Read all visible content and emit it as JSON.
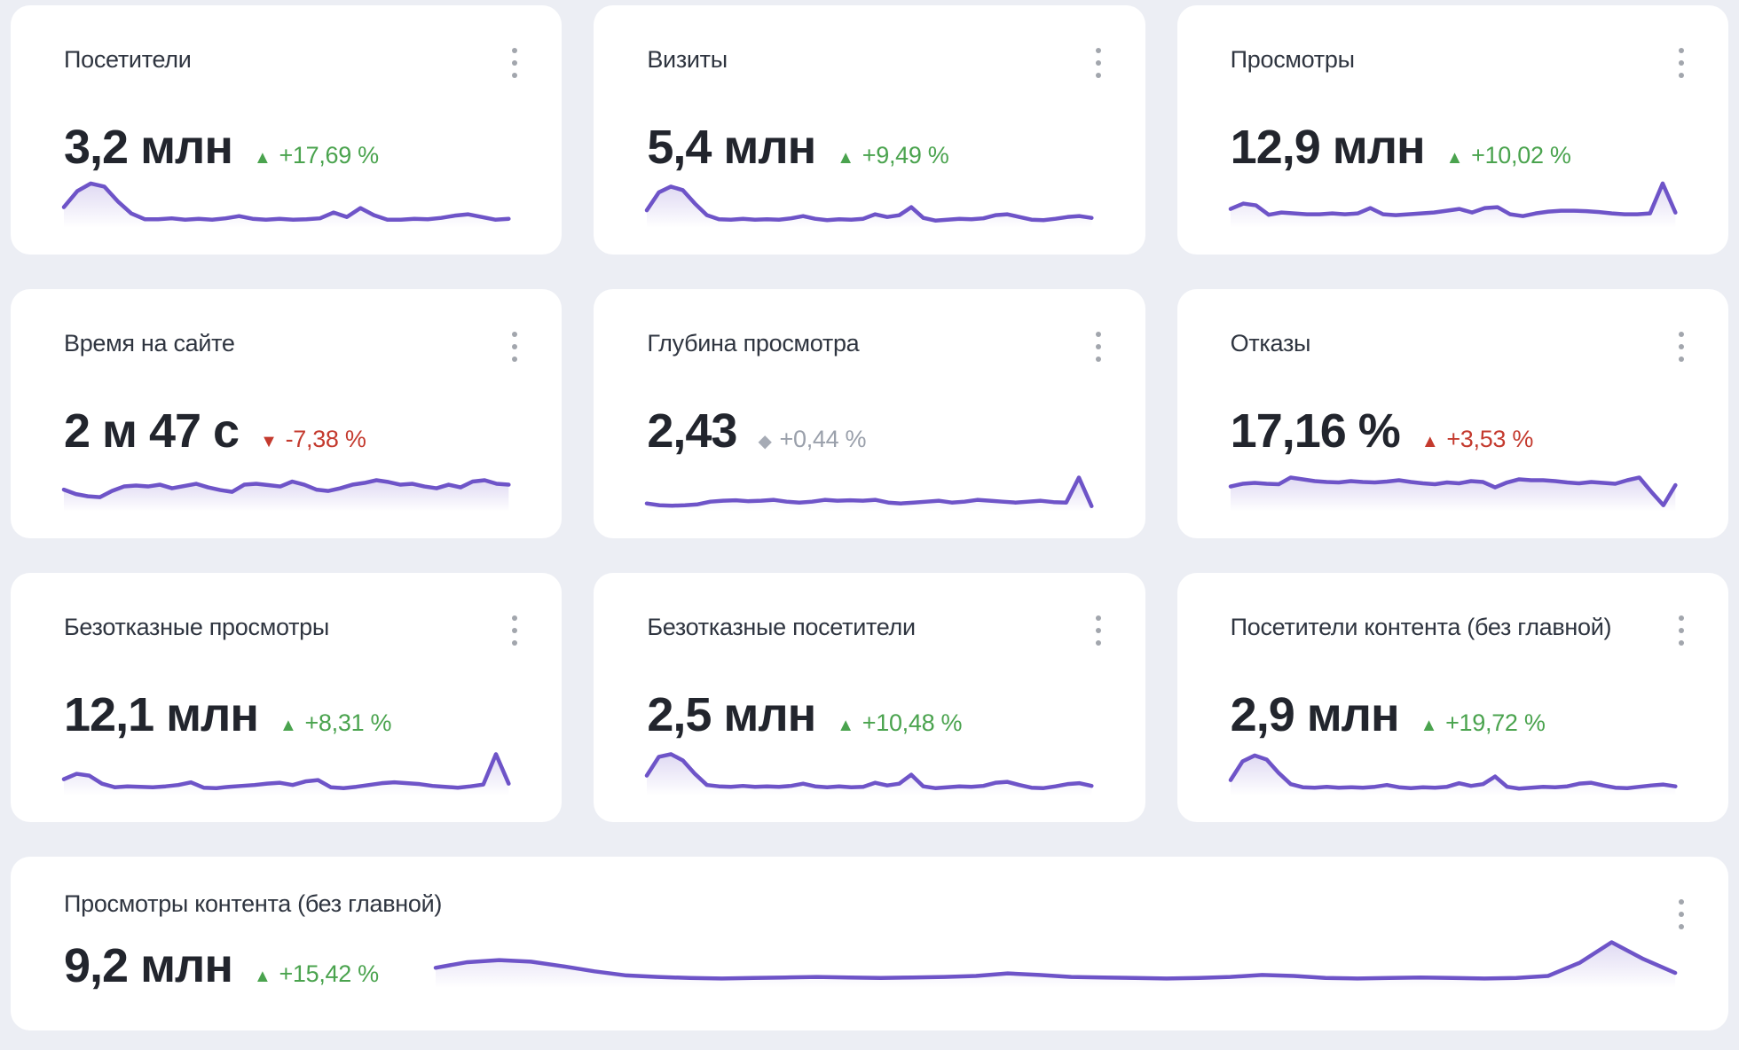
{
  "page": {
    "background": "#eceef4",
    "card_background": "#ffffff"
  },
  "colors": {
    "title_text": "#2f3540",
    "value_text": "#22252d",
    "positive": "#4aa34e",
    "negative": "#c43a2e",
    "neutral": "#9aa0ab",
    "sparkline": "#6e54c8",
    "kebab_dots": "#a2a6ad"
  },
  "cards": [
    {
      "title": "Посетители",
      "value": "3,2 млн",
      "marker": "▲",
      "delta": "+17,69 %",
      "sentiment": "positive"
    },
    {
      "title": "Визиты",
      "value": "5,4 млн",
      "marker": "▲",
      "delta": "+9,49 %",
      "sentiment": "positive"
    },
    {
      "title": "Просмотры",
      "value": "12,9 млн",
      "marker": "▲",
      "delta": "+10,02 %",
      "sentiment": "positive"
    },
    {
      "title": "Время на сайте",
      "value": "2 м 47 с",
      "marker": "▼",
      "delta": "-7,38 %",
      "sentiment": "negative"
    },
    {
      "title": "Глубина просмотра",
      "value": "2,43",
      "marker": "◆",
      "delta": "+0,44 %",
      "sentiment": "neutral"
    },
    {
      "title": "Отказы",
      "value": "17,16 %",
      "marker": "▲",
      "delta": "+3,53 %",
      "sentiment": "negative"
    },
    {
      "title": "Безотказные просмотры",
      "value": "12,1 млн",
      "marker": "▲",
      "delta": "+8,31 %",
      "sentiment": "positive"
    },
    {
      "title": "Безотказные посетители",
      "value": "2,5 млн",
      "marker": "▲",
      "delta": "+10,48 %",
      "sentiment": "positive"
    },
    {
      "title": "Посетители контента (без главной)",
      "value": "2,9 млн",
      "marker": "▲",
      "delta": "+19,72 %",
      "sentiment": "positive"
    },
    {
      "title": "Просмотры контента (без главной)",
      "value": "9,2 млн",
      "marker": "▲",
      "delta": "+15,42 %",
      "sentiment": "positive"
    }
  ],
  "chart_data": [
    {
      "type": "area",
      "title": "Посетители",
      "scale": "normalized 0-100 (sparkline, no axes shown)",
      "values": [
        42,
        78,
        95,
        88,
        55,
        28,
        15,
        15,
        17,
        14,
        16,
        14,
        17,
        22,
        16,
        14,
        16,
        14,
        15,
        17,
        30,
        20,
        40,
        24,
        14,
        14,
        16,
        15,
        18,
        23,
        26,
        20,
        14,
        16
      ]
    },
    {
      "type": "area",
      "title": "Визиты",
      "scale": "normalized 0-100 (sparkline, no axes shown)",
      "values": [
        35,
        75,
        88,
        80,
        50,
        24,
        15,
        14,
        16,
        14,
        15,
        14,
        17,
        22,
        16,
        13,
        15,
        14,
        16,
        26,
        20,
        24,
        42,
        18,
        12,
        14,
        16,
        15,
        17,
        24,
        26,
        20,
        14,
        13,
        16,
        20,
        22,
        18
      ]
    },
    {
      "type": "area",
      "title": "Просмотры",
      "scale": "normalized 0-100 (sparkline, no axes shown)",
      "values": [
        38,
        50,
        46,
        25,
        30,
        28,
        26,
        26,
        28,
        26,
        28,
        40,
        26,
        24,
        26,
        28,
        30,
        34,
        38,
        30,
        40,
        42,
        26,
        22,
        28,
        32,
        34,
        34,
        33,
        31,
        28,
        26,
        26,
        28,
        95,
        30
      ]
    },
    {
      "type": "area",
      "title": "Время на сайте",
      "scale": "normalized 0-100 (sparkline, no axes shown)",
      "values": [
        45,
        35,
        30,
        28,
        42,
        52,
        54,
        52,
        56,
        48,
        53,
        58,
        50,
        44,
        40,
        56,
        58,
        55,
        52,
        63,
        56,
        45,
        42,
        48,
        56,
        60,
        66,
        62,
        56,
        58,
        52,
        48,
        56,
        50,
        63,
        66,
        58,
        56
      ]
    },
    {
      "type": "area",
      "title": "Глубина просмотра",
      "scale": "normalized 0-100 (sparkline, no axes shown)",
      "values": [
        14,
        10,
        9,
        10,
        12,
        18,
        20,
        21,
        19,
        20,
        22,
        18,
        16,
        18,
        22,
        20,
        21,
        20,
        22,
        16,
        14,
        16,
        18,
        20,
        16,
        18,
        22,
        20,
        18,
        16,
        18,
        20,
        17,
        16,
        72,
        8
      ]
    },
    {
      "type": "area",
      "title": "Отказы",
      "scale": "normalized 0-100 (sparkline, no axes shown)",
      "values": [
        52,
        58,
        60,
        58,
        57,
        72,
        68,
        64,
        62,
        61,
        64,
        62,
        61,
        63,
        66,
        62,
        59,
        57,
        61,
        59,
        64,
        62,
        50,
        61,
        68,
        66,
        66,
        64,
        61,
        59,
        62,
        60,
        58,
        66,
        72,
        40,
        10,
        55
      ]
    },
    {
      "type": "area",
      "title": "Безотказные просмотры",
      "scale": "normalized 0-100 (sparkline, no axes shown)",
      "values": [
        32,
        44,
        40,
        22,
        14,
        16,
        15,
        14,
        16,
        19,
        25,
        13,
        12,
        15,
        17,
        19,
        22,
        24,
        19,
        27,
        30,
        14,
        12,
        15,
        19,
        23,
        25,
        23,
        21,
        17,
        15,
        13,
        16,
        20,
        88,
        22
      ]
    },
    {
      "type": "area",
      "title": "Безотказные посетители",
      "scale": "normalized 0-100 (sparkline, no axes shown)",
      "values": [
        40,
        82,
        88,
        74,
        44,
        19,
        16,
        15,
        17,
        15,
        16,
        15,
        17,
        22,
        16,
        14,
        16,
        14,
        15,
        24,
        18,
        22,
        42,
        16,
        12,
        14,
        16,
        15,
        17,
        24,
        26,
        19,
        13,
        12,
        16,
        21,
        23,
        17
      ]
    },
    {
      "type": "area",
      "title": "Посетители контента (без главной)",
      "scale": "normalized 0-100 (sparkline, no axes shown)",
      "values": [
        30,
        72,
        85,
        76,
        46,
        21,
        14,
        13,
        15,
        13,
        14,
        13,
        15,
        19,
        14,
        12,
        14,
        13,
        15,
        23,
        17,
        21,
        38,
        15,
        11,
        13,
        15,
        14,
        16,
        22,
        24,
        18,
        13,
        12,
        15,
        18,
        20,
        16
      ]
    },
    {
      "type": "area",
      "title": "Просмотры контента (без главной)",
      "scale": "normalized 0-100 (sparkline, no axes shown)",
      "values": [
        35,
        46,
        50,
        47,
        38,
        28,
        20,
        17,
        15,
        14,
        15,
        16,
        17,
        16,
        15,
        16,
        17,
        19,
        24,
        21,
        17,
        16,
        15,
        14,
        15,
        17,
        21,
        19,
        15,
        14,
        15,
        16,
        15,
        14,
        15,
        19,
        45,
        85,
        52,
        25
      ]
    }
  ]
}
